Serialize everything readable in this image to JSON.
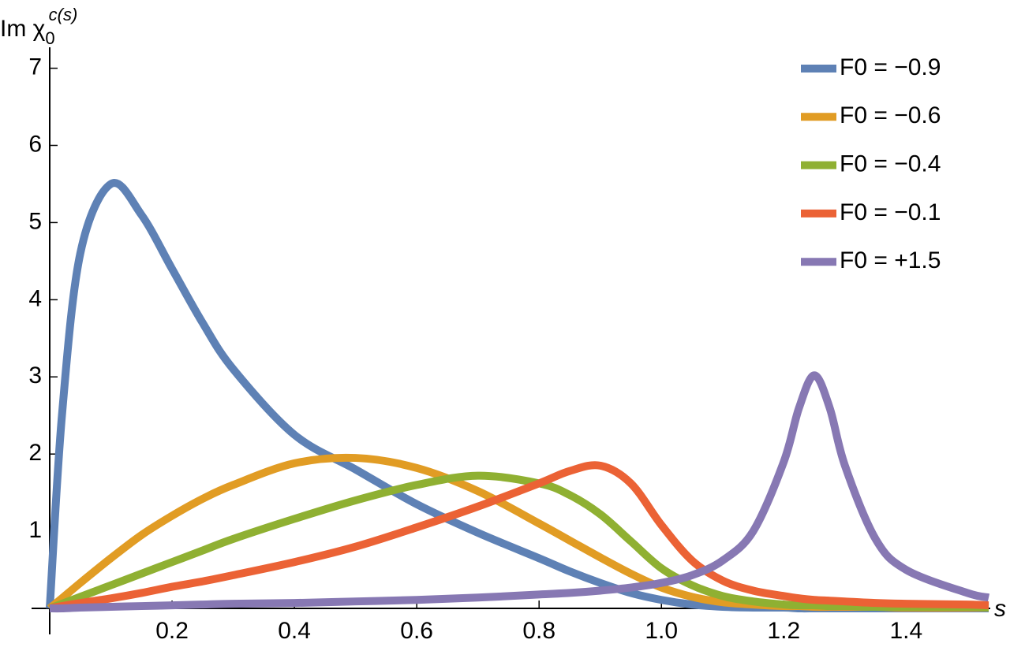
{
  "chart_data": {
    "type": "line",
    "y_label": {
      "text": "Im χ",
      "subscript": "0",
      "superscript": "c(s)"
    },
    "x_label": "s",
    "x": [
      0,
      0.02,
      0.05,
      0.1,
      0.15,
      0.2,
      0.25,
      0.3,
      0.4,
      0.5,
      0.6,
      0.7,
      0.8,
      0.85,
      0.9,
      0.95,
      1.0,
      1.05,
      1.1,
      1.15,
      1.2,
      1.225,
      1.25,
      1.275,
      1.3,
      1.35,
      1.4,
      1.5,
      1.535
    ],
    "series": [
      {
        "name": "F0 = −0.9",
        "color": "#5e81b5",
        "values": [
          0,
          2.5,
          4.6,
          5.5,
          5.1,
          4.4,
          3.7,
          3.1,
          2.25,
          1.8,
          1.35,
          0.98,
          0.65,
          0.48,
          0.33,
          0.2,
          0.11,
          0.05,
          0.02,
          0.01,
          0.01,
          0,
          0,
          0,
          0,
          0,
          0,
          0,
          0
        ]
      },
      {
        "name": "F0 = −0.6",
        "color": "#e19c24",
        "values": [
          0,
          0.13,
          0.33,
          0.65,
          0.95,
          1.2,
          1.42,
          1.6,
          1.88,
          1.95,
          1.82,
          1.52,
          1.1,
          0.88,
          0.66,
          0.45,
          0.27,
          0.15,
          0.08,
          0.05,
          0.03,
          0.03,
          0.02,
          0.02,
          0.02,
          0.02,
          0.01,
          0.01,
          0.01
        ]
      },
      {
        "name": "F0 = −0.4",
        "color": "#8fb032",
        "values": [
          0,
          0.06,
          0.15,
          0.3,
          0.45,
          0.6,
          0.75,
          0.9,
          1.16,
          1.4,
          1.6,
          1.72,
          1.62,
          1.47,
          1.22,
          0.87,
          0.52,
          0.3,
          0.16,
          0.09,
          0.05,
          0.04,
          0.04,
          0.03,
          0.03,
          0.02,
          0.02,
          0.02,
          0.01
        ]
      },
      {
        "name": "F0 = −0.1",
        "color": "#eb6235",
        "values": [
          0,
          0.03,
          0.07,
          0.13,
          0.2,
          0.28,
          0.35,
          0.43,
          0.6,
          0.8,
          1.05,
          1.32,
          1.62,
          1.78,
          1.85,
          1.62,
          1.08,
          0.62,
          0.36,
          0.23,
          0.16,
          0.13,
          0.11,
          0.1,
          0.09,
          0.07,
          0.06,
          0.05,
          0.04
        ]
      },
      {
        "name": "F0 = +1.5",
        "color": "#8778b3",
        "values": [
          0,
          0,
          0.01,
          0.02,
          0.03,
          0.04,
          0.05,
          0.06,
          0.07,
          0.09,
          0.11,
          0.14,
          0.18,
          0.2,
          0.23,
          0.27,
          0.33,
          0.43,
          0.62,
          1.0,
          1.9,
          2.6,
          3.02,
          2.6,
          1.85,
          0.9,
          0.5,
          0.2,
          0.14
        ]
      }
    ],
    "xlim": [
      0,
      1.535
    ],
    "ylim": [
      0,
      7.2
    ],
    "xticks": [
      0.2,
      0.4,
      0.6,
      0.8,
      {
        "value": 1,
        "label": "1.0"
      },
      1.2,
      1.4
    ],
    "yticks": [
      1,
      2,
      3,
      4,
      5,
      6,
      7
    ],
    "legend": "top-right",
    "grid": false
  }
}
